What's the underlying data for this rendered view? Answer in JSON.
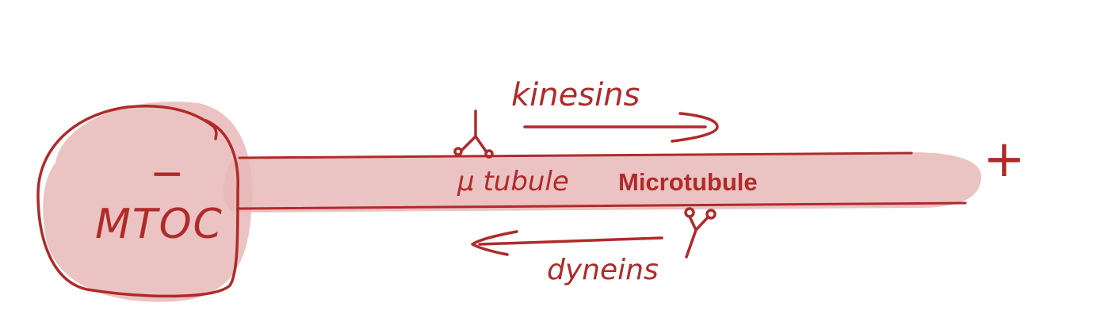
{
  "colors": {
    "ink": "#b02a2a",
    "fill": "#e8b8b8",
    "background": "#ffffff"
  },
  "labels": {
    "minus_sign": "−",
    "mtoc": "MTOC",
    "kinesins": "kinesins",
    "mu_tubule": "μ tubule",
    "microtubule": "Microtubule",
    "plus_sign": "+",
    "dyneins": "dyneins"
  },
  "icons": {
    "kinesin_motor": "kinesin-motor-icon",
    "dynein_motor": "dynein-motor-icon"
  }
}
